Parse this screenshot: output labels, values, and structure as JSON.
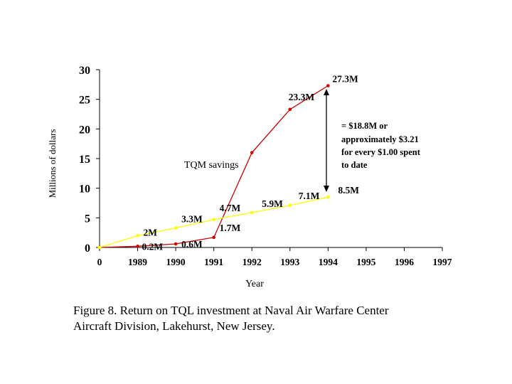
{
  "chart_data": {
    "type": "line",
    "ylabel": "Millions of dollars",
    "xlabel": "Year",
    "ylim": [
      0,
      30
    ],
    "yticks": [
      "0",
      "5",
      "10",
      "15",
      "20",
      "25",
      "30"
    ],
    "xticks": [
      "0",
      "1989",
      "1990",
      "1991",
      "1992",
      "1993",
      "1994",
      "1995",
      "1996",
      "1997"
    ],
    "grid": false,
    "series": [
      {
        "color": "#cc0000",
        "values": [
          0,
          0.2,
          0.6,
          1.7,
          16.0,
          23.3,
          27.3
        ],
        "value_labels": [
          "",
          "0.2M",
          "0.6M",
          "1.7M",
          "",
          "23.3M",
          "27.3M"
        ]
      },
      {
        "color": "#ffff00",
        "values": [
          0,
          2,
          3.3,
          4.7,
          5.9,
          7.1,
          8.5
        ],
        "value_labels": [
          "",
          "2M",
          "3.3M",
          "4.7M",
          "5.9M",
          "7.1M",
          "8.5M"
        ]
      }
    ],
    "annotations": {
      "savings_label": "TQM savings",
      "difference_lines": [
        "= $18.8M or",
        "approximately $3.21",
        "for every $1.00 spent",
        "to date"
      ]
    }
  },
  "caption": {
    "line1": "Figure 8. Return on TQL investment at Naval Air Warfare Center",
    "line2": "Aircraft Division, Lakehurst, New Jersey."
  }
}
